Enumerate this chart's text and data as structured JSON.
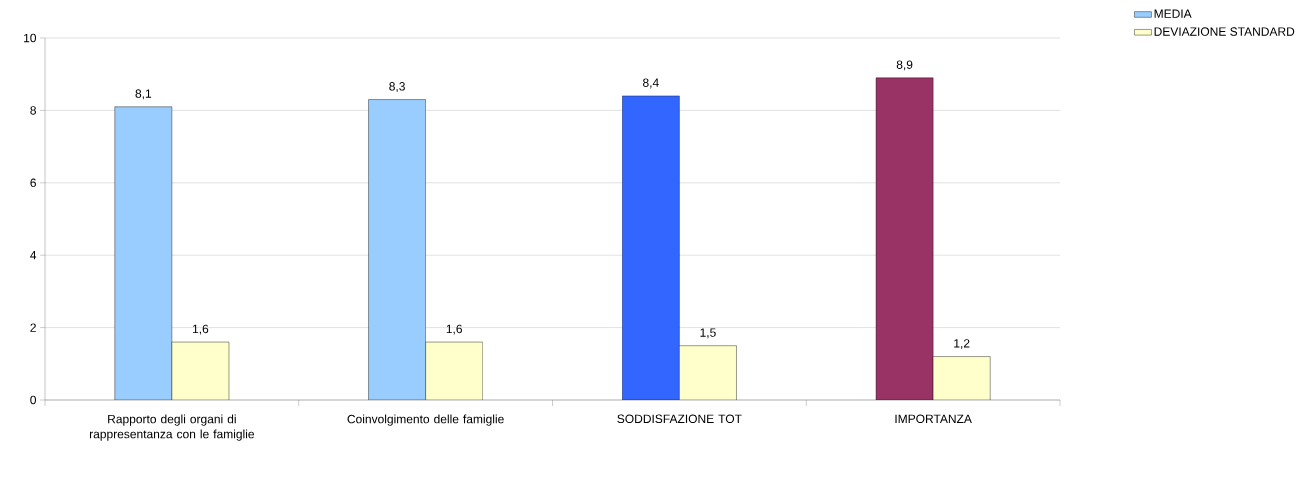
{
  "chart_data": {
    "type": "bar",
    "categories": [
      "Rapporto degli organi di rappresentanza con le famiglie",
      "Coinvolgimento delle famiglie",
      "SODDISFAZIONE TOT",
      "IMPORTANZA"
    ],
    "series": [
      {
        "name": "MEDIA",
        "color": "#99ccff",
        "colors": [
          "#99ccff",
          "#99ccff",
          "#3366ff",
          "#993366"
        ],
        "values": [
          8.1,
          8.3,
          8.4,
          8.9
        ],
        "value_labels": [
          "8,1",
          "8,3",
          "8,4",
          "8,9"
        ]
      },
      {
        "name": "DEVIAZIONE STANDARD",
        "color": "#ffffcc",
        "values": [
          1.6,
          1.6,
          1.5,
          1.2
        ],
        "value_labels": [
          "1,6",
          "1,6",
          "1,5",
          "1,2"
        ]
      }
    ],
    "ylim": [
      0,
      10
    ],
    "yticks": [
      0,
      2,
      4,
      6,
      8,
      10
    ],
    "grid": "y",
    "legend": "top right"
  }
}
